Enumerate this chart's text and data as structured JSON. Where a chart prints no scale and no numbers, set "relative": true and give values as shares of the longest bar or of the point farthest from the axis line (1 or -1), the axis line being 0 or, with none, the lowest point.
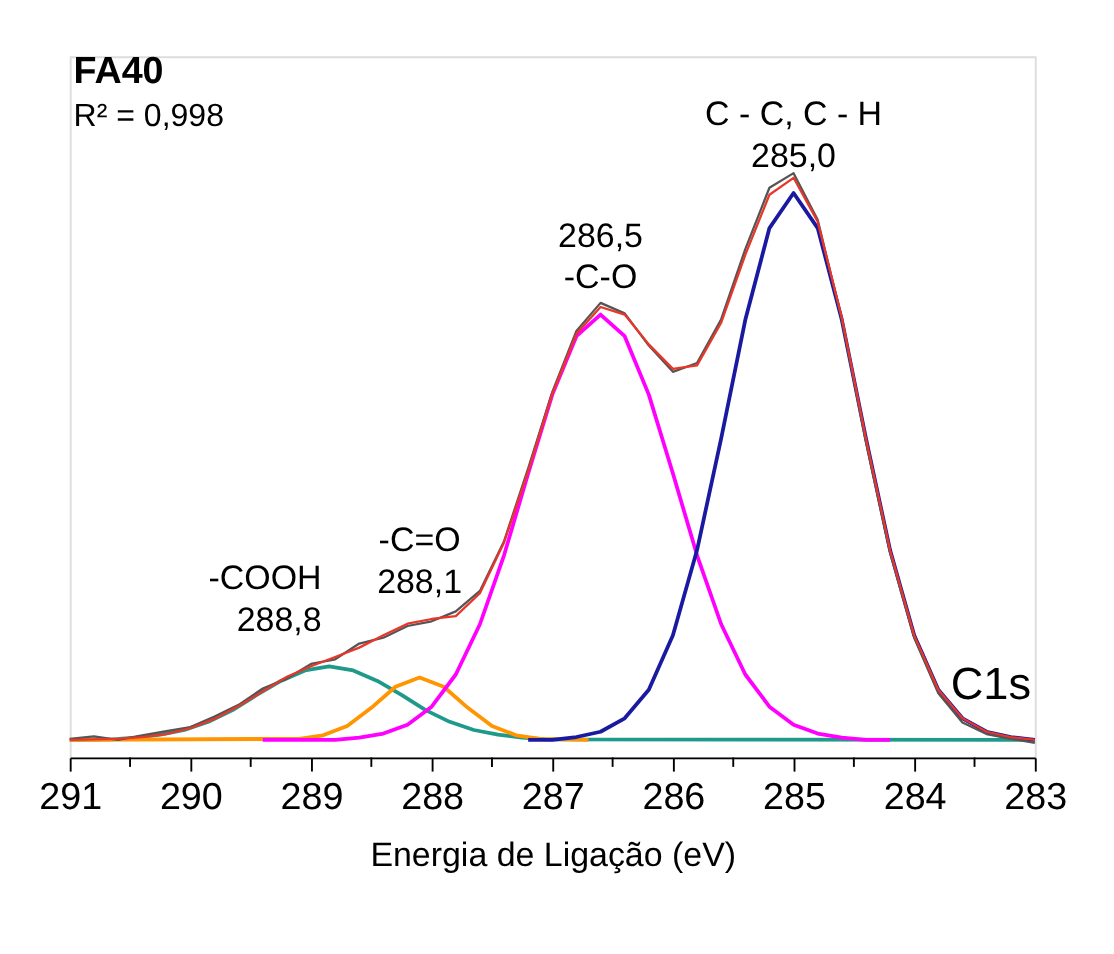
{
  "chart_data": {
    "type": "line",
    "xlabel": "Energia de Ligação (eV)",
    "relative": true,
    "xlim": [
      291,
      283
    ],
    "xticks": [
      291,
      {
        "value": 290.5,
        "label": null
      },
      290,
      {
        "value": 289.5,
        "label": null
      },
      289,
      {
        "value": 288.5,
        "label": null
      },
      288,
      {
        "value": 287.5,
        "label": null
      },
      287,
      {
        "value": 286.5,
        "label": null
      },
      286,
      {
        "value": 285.5,
        "label": null
      },
      285,
      {
        "value": 284.5,
        "label": null
      },
      284,
      {
        "value": 283.5,
        "label": null
      },
      283
    ],
    "grid": false,
    "marker": "none",
    "line_style": "solid",
    "tick_labels": "x",
    "series": [
      {
        "color": "#1f9a8a",
        "x": [
          291.0,
          290.65,
          290.45,
          290.25,
          290.05,
          289.85,
          289.65,
          289.45,
          289.25,
          289.05,
          288.85,
          288.65,
          288.45,
          288.25,
          288.05,
          287.85,
          287.65,
          287.45,
          287.25,
          287.05,
          283.0
        ],
        "values": [
          0.03,
          0.031,
          0.034,
          0.039,
          0.047,
          0.061,
          0.081,
          0.107,
          0.131,
          0.149,
          0.156,
          0.149,
          0.131,
          0.107,
          0.081,
          0.061,
          0.047,
          0.039,
          0.034,
          0.031,
          0.03
        ]
      },
      {
        "color": "#ff9500",
        "x": [
          291.0,
          289.1,
          288.9,
          288.7,
          288.5,
          288.3,
          288.1,
          287.9,
          287.7,
          287.5,
          287.3,
          287.1,
          286.7
        ],
        "values": [
          0.03,
          0.032,
          0.038,
          0.054,
          0.085,
          0.121,
          0.137,
          0.121,
          0.085,
          0.054,
          0.038,
          0.032,
          0.03
        ]
      },
      {
        "color": "#ff00ff",
        "x": [
          289.4,
          288.8,
          288.6,
          288.4,
          288.2,
          288.0,
          287.8,
          287.6,
          287.4,
          287.2,
          287.0,
          286.8,
          286.6,
          286.4,
          286.2,
          286.0,
          285.8,
          285.6,
          285.4,
          285.2,
          285.0,
          284.8,
          284.6,
          284.4,
          284.2
        ],
        "values": [
          0.03,
          0.03,
          0.034,
          0.041,
          0.056,
          0.087,
          0.142,
          0.228,
          0.346,
          0.486,
          0.621,
          0.721,
          0.758,
          0.721,
          0.621,
          0.486,
          0.346,
          0.228,
          0.142,
          0.087,
          0.056,
          0.041,
          0.034,
          0.03,
          0.03
        ]
      },
      {
        "color": "#1a1aa0",
        "x": [
          287.2,
          287.0,
          286.8,
          286.6,
          286.4,
          286.2,
          286.0,
          285.8,
          285.6,
          285.4,
          285.2,
          285.0,
          284.8,
          284.6,
          284.4,
          284.2,
          284.0,
          283.8,
          283.6,
          283.4,
          283.2,
          283.0
        ],
        "values": [
          0.03,
          0.03,
          0.035,
          0.044,
          0.067,
          0.116,
          0.209,
          0.355,
          0.546,
          0.749,
          0.906,
          0.966,
          0.906,
          0.749,
          0.546,
          0.355,
          0.209,
          0.116,
          0.067,
          0.044,
          0.035,
          0.03
        ]
      },
      {
        "color": "#555555",
        "x": [
          291.0,
          290.8,
          290.6,
          290.4,
          290.2,
          290.0,
          289.8,
          289.6,
          289.4,
          289.2,
          289.0,
          288.8,
          288.6,
          288.4,
          288.2,
          288.0,
          287.8,
          287.6,
          287.4,
          287.2,
          287.0,
          286.8,
          286.6,
          286.4,
          286.2,
          286.0,
          285.8,
          285.6,
          285.4,
          285.2,
          285.0,
          284.8,
          284.6,
          284.4,
          284.2,
          284.0,
          283.8,
          283.6,
          283.4,
          283.2,
          283.0
        ],
        "values": [
          0.032,
          0.036,
          0.03,
          0.038,
          0.045,
          0.052,
          0.07,
          0.09,
          0.118,
          0.135,
          0.16,
          0.168,
          0.195,
          0.205,
          0.225,
          0.233,
          0.25,
          0.285,
          0.37,
          0.495,
          0.625,
          0.73,
          0.778,
          0.76,
          0.705,
          0.66,
          0.675,
          0.75,
          0.87,
          0.975,
          1.0,
          0.92,
          0.75,
          0.54,
          0.35,
          0.205,
          0.11,
          0.06,
          0.04,
          0.032,
          0.025
        ]
      },
      {
        "color": "#e8362a",
        "x": [
          291.0,
          290.8,
          290.6,
          290.4,
          290.2,
          290.0,
          289.8,
          289.6,
          289.4,
          289.2,
          289.0,
          288.8,
          288.6,
          288.4,
          288.2,
          288.0,
          287.8,
          287.6,
          287.4,
          287.2,
          287.0,
          286.8,
          286.6,
          286.4,
          286.2,
          286.0,
          285.8,
          285.6,
          285.4,
          285.2,
          285.0,
          284.8,
          284.6,
          284.4,
          284.2,
          284.0,
          283.8,
          283.6,
          283.4,
          283.2,
          283.0
        ],
        "values": [
          0.03,
          0.031,
          0.032,
          0.035,
          0.04,
          0.05,
          0.066,
          0.088,
          0.113,
          0.138,
          0.156,
          0.172,
          0.188,
          0.209,
          0.229,
          0.237,
          0.242,
          0.281,
          0.368,
          0.49,
          0.622,
          0.725,
          0.771,
          0.758,
          0.707,
          0.665,
          0.671,
          0.744,
          0.86,
          0.963,
          0.992,
          0.917,
          0.753,
          0.546,
          0.355,
          0.209,
          0.116,
          0.067,
          0.044,
          0.035,
          0.03
        ]
      }
    ],
    "annotations": [
      "FA40",
      "R² = 0,998",
      "C1s",
      {
        "text": "C - C, C - H",
        "x": 285.0,
        "y": 0.966
      },
      {
        "text": "285,0",
        "x": 285.0,
        "y": 0.966
      },
      {
        "text": "286,5",
        "x": 286.6,
        "y": 0.758
      },
      {
        "text": "-C-O",
        "x": 286.6,
        "y": 0.758
      },
      {
        "text": "-C=O",
        "x": 288.1,
        "y": 0.237
      },
      {
        "text": "288,1",
        "x": 288.1,
        "y": 0.237
      },
      {
        "text": "-COOH",
        "x": 288.85,
        "y": 0.172
      },
      {
        "text": "288,8",
        "x": 288.85,
        "y": 0.172
      }
    ]
  }
}
